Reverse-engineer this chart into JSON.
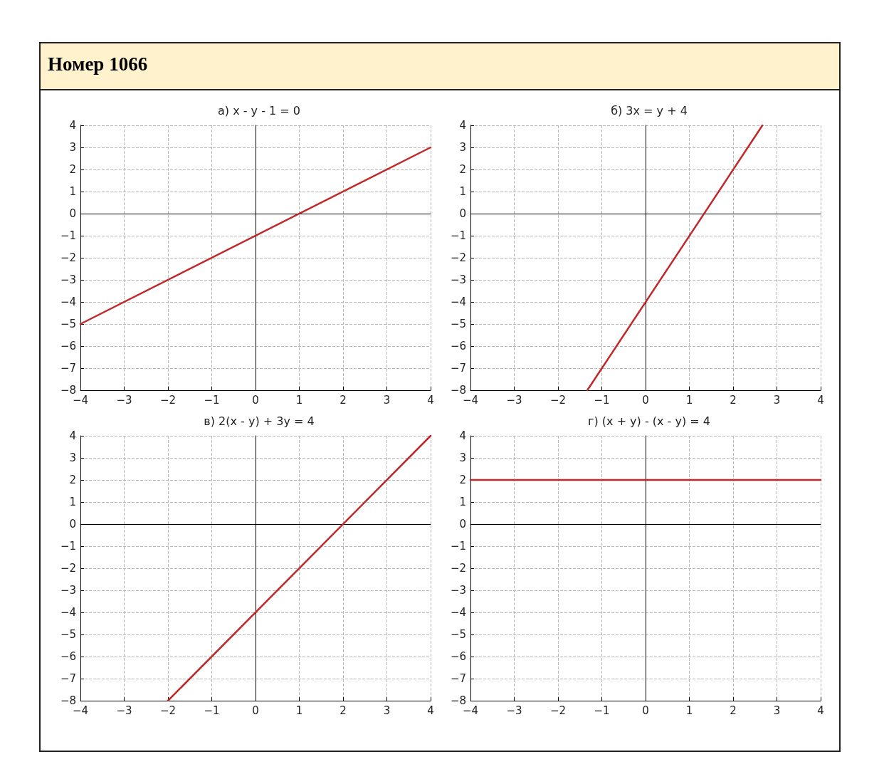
{
  "chart_data": [
    {
      "type": "other",
      "title": "Номер 1066"
    },
    {
      "type": "line",
      "title": "а) x - y - 1 = 0",
      "xlim": [
        -4,
        4
      ],
      "ylim": [
        -8,
        4
      ],
      "xticks": [
        {
          "value": -4,
          "label": "−4"
        },
        {
          "value": -3,
          "label": "−3"
        },
        {
          "value": -2,
          "label": "−2"
        },
        {
          "value": -1,
          "label": "−1"
        },
        0,
        1,
        2,
        3,
        4
      ],
      "yticks": [
        {
          "value": -8,
          "label": "−8"
        },
        {
          "value": -7,
          "label": "−7"
        },
        {
          "value": -6,
          "label": "−6"
        },
        {
          "value": -5,
          "label": "−5"
        },
        {
          "value": -4,
          "label": "−4"
        },
        {
          "value": -3,
          "label": "−3"
        },
        {
          "value": -2,
          "label": "−2"
        },
        {
          "value": -1,
          "label": "−1"
        },
        0,
        1,
        2,
        3,
        4
      ],
      "grid": true,
      "series": [
        {
          "color": "#c0282a",
          "x": [
            -4,
            4
          ],
          "values": [
            -5,
            3
          ]
        }
      ]
    },
    {
      "type": "line",
      "title": "б) 3x = y + 4",
      "xlim": [
        -4,
        4
      ],
      "ylim": [
        -8,
        4
      ],
      "xticks": [
        {
          "value": -4,
          "label": "−4"
        },
        {
          "value": -3,
          "label": "−3"
        },
        {
          "value": -2,
          "label": "−2"
        },
        {
          "value": -1,
          "label": "−1"
        },
        0,
        1,
        2,
        3,
        4
      ],
      "yticks": [
        {
          "value": -8,
          "label": "−8"
        },
        {
          "value": -7,
          "label": "−7"
        },
        {
          "value": -6,
          "label": "−6"
        },
        {
          "value": -5,
          "label": "−5"
        },
        {
          "value": -4,
          "label": "−4"
        },
        {
          "value": -3,
          "label": "−3"
        },
        {
          "value": -2,
          "label": "−2"
        },
        {
          "value": -1,
          "label": "−1"
        },
        0,
        1,
        2,
        3,
        4
      ],
      "grid": true,
      "series": [
        {
          "color": "#c0282a",
          "x": [
            -1.33,
            2.67
          ],
          "values": [
            -8,
            4
          ]
        }
      ]
    },
    {
      "type": "line",
      "title": "в) 2(x - y) + 3y = 4",
      "xlim": [
        -4,
        4
      ],
      "ylim": [
        -8,
        4
      ],
      "xticks": [
        {
          "value": -4,
          "label": "−4"
        },
        {
          "value": -3,
          "label": "−3"
        },
        {
          "value": -2,
          "label": "−2"
        },
        {
          "value": -1,
          "label": "−1"
        },
        0,
        1,
        2,
        3,
        4
      ],
      "yticks": [
        {
          "value": -8,
          "label": "−8"
        },
        {
          "value": -7,
          "label": "−7"
        },
        {
          "value": -6,
          "label": "−6"
        },
        {
          "value": -5,
          "label": "−5"
        },
        {
          "value": -4,
          "label": "−4"
        },
        {
          "value": -3,
          "label": "−3"
        },
        {
          "value": -2,
          "label": "−2"
        },
        {
          "value": -1,
          "label": "−1"
        },
        0,
        1,
        2,
        3,
        4
      ],
      "grid": true,
      "series": [
        {
          "color": "#c0282a",
          "x": [
            -2,
            4
          ],
          "values": [
            -8,
            4
          ]
        }
      ]
    },
    {
      "type": "line",
      "title": "г) (x + y) - (x - y) = 4",
      "xlim": [
        -4,
        4
      ],
      "ylim": [
        -8,
        4
      ],
      "xticks": [
        {
          "value": -4,
          "label": "−4"
        },
        {
          "value": -3,
          "label": "−3"
        },
        {
          "value": -2,
          "label": "−2"
        },
        {
          "value": -1,
          "label": "−1"
        },
        0,
        1,
        2,
        3,
        4
      ],
      "yticks": [
        {
          "value": -8,
          "label": "−8"
        },
        {
          "value": -7,
          "label": "−7"
        },
        {
          "value": -6,
          "label": "−6"
        },
        {
          "value": -5,
          "label": "−5"
        },
        {
          "value": -4,
          "label": "−4"
        },
        {
          "value": -3,
          "label": "−3"
        },
        {
          "value": -2,
          "label": "−2"
        },
        {
          "value": -1,
          "label": "−1"
        },
        0,
        1,
        2,
        3,
        4
      ],
      "grid": true,
      "series": [
        {
          "color": "#c0282a",
          "x": [
            -4,
            4
          ],
          "values": [
            2,
            2
          ]
        }
      ]
    }
  ]
}
